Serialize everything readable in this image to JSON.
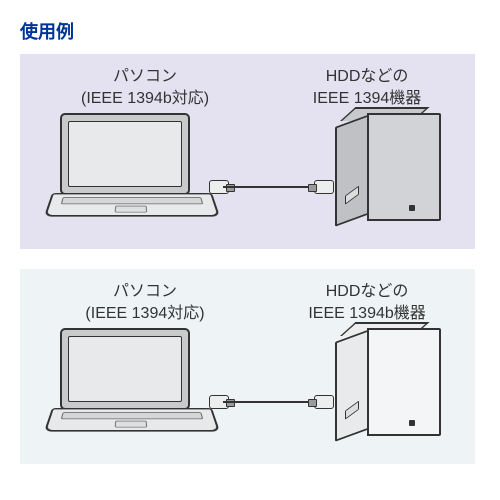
{
  "title": "使用例",
  "title_color": "#003399",
  "panels": [
    {
      "bg_color": "#e4e2f0",
      "left_line1": "パソコン",
      "left_line2": "(IEEE 1394b対応)",
      "right_line1": "HDDなどの",
      "right_line2": "IEEE 1394機器",
      "hdd_side_fill": "#bfc1c5",
      "hdd_front_fill": "#d2d3d6",
      "hdd_top_fill": "#c7c9cd"
    },
    {
      "bg_color": "#eef4f6",
      "left_line1": "パソコン",
      "left_line2": "(IEEE 1394対応)",
      "right_line1": "HDDなどの",
      "right_line2": "IEEE 1394b機器",
      "hdd_side_fill": "#e9eaec",
      "hdd_front_fill": "#f4f5f6",
      "hdd_top_fill": "#eceded"
    }
  ],
  "style": {
    "outline_color": "#333333",
    "laptop_body": "#e8e9ea",
    "laptop_bezel": "#c9cacc",
    "text_color": "#333333",
    "label_fontsize": 16
  }
}
